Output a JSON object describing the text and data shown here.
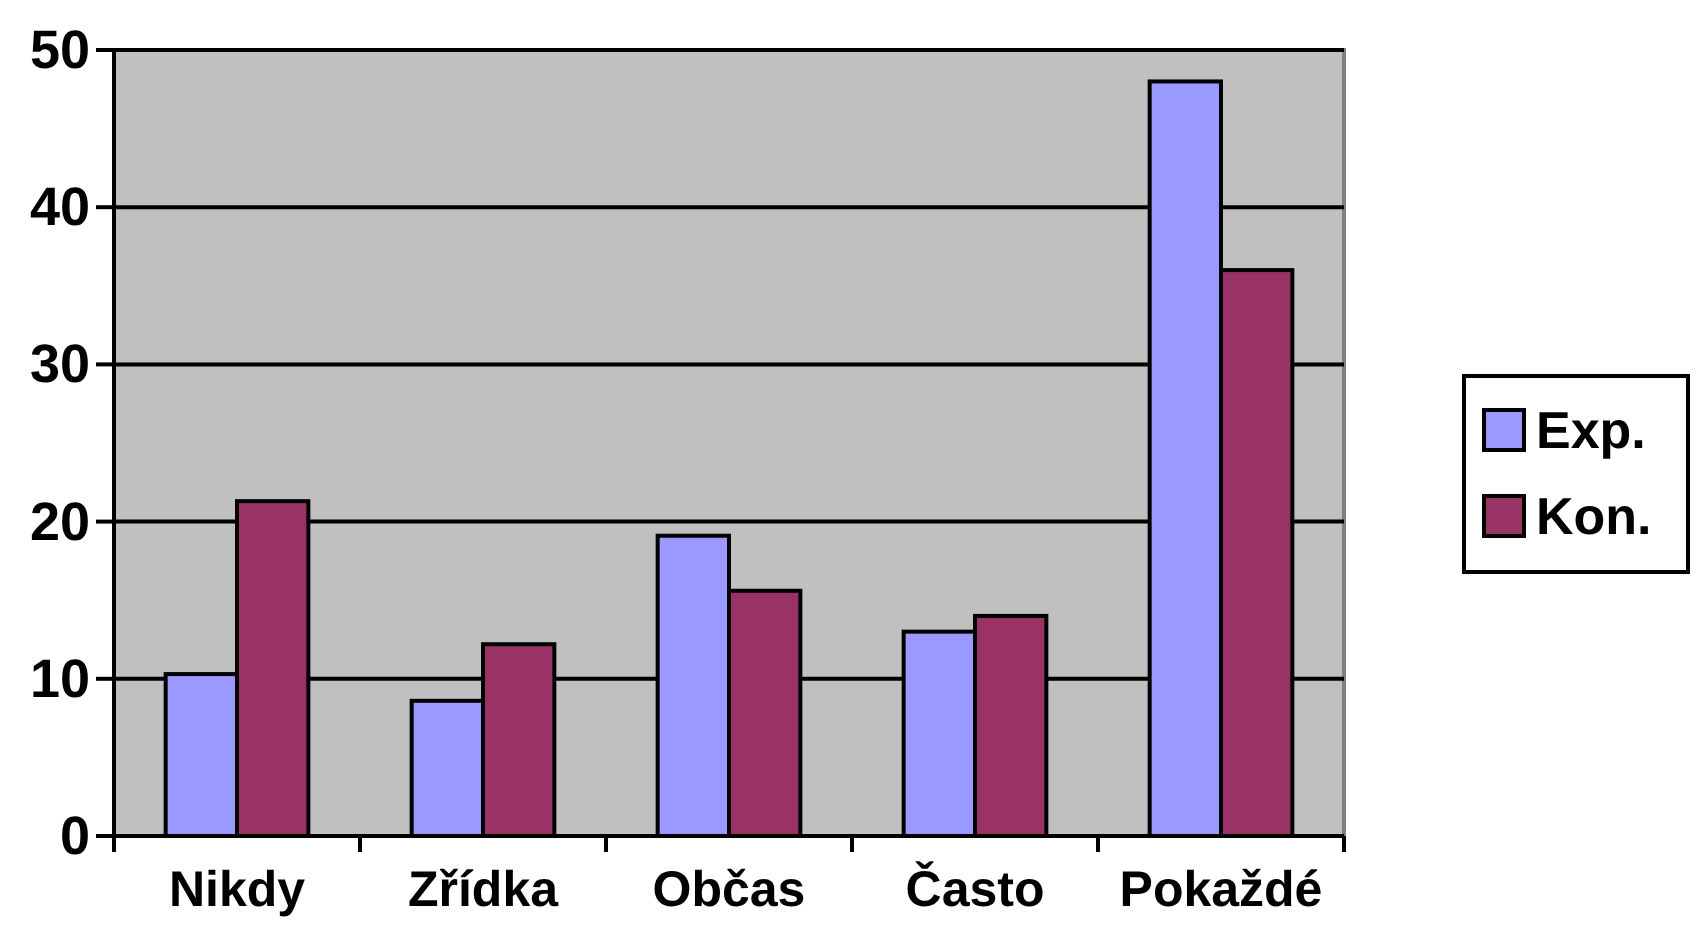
{
  "chart_data": {
    "type": "bar",
    "categories": [
      "Nikdy",
      "Zřídka",
      "Občas",
      "Často",
      "Pokaždé"
    ],
    "series": [
      {
        "name": "Exp.",
        "color": "#9999ff",
        "values": [
          10.3,
          8.6,
          19.1,
          13.0,
          48.0
        ]
      },
      {
        "name": "Kon.",
        "color": "#993366",
        "values": [
          21.3,
          12.2,
          15.6,
          14.0,
          36.0
        ]
      }
    ],
    "ylim": [
      0,
      50
    ],
    "yticks": [
      0,
      10,
      20,
      30,
      40,
      50
    ],
    "grid": "y",
    "legend": "right"
  }
}
